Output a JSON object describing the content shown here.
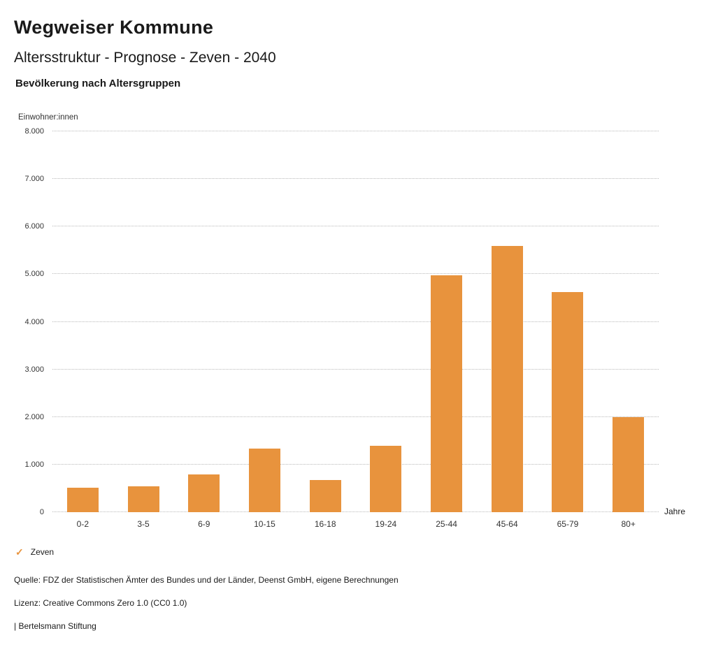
{
  "header": {
    "title": "Wegweiser Kommune",
    "subtitle": "Altersstruktur - Prognose - Zeven - 2040",
    "chart_title": "Bevölkerung nach Altersgruppen"
  },
  "chart_data": {
    "type": "bar",
    "title": "Bevölkerung nach Altersgruppen",
    "y_axis_label": "Einwohner:innen",
    "x_axis_label": "Jahre",
    "categories": [
      "0-2",
      "3-5",
      "6-9",
      "10-15",
      "16-18",
      "19-24",
      "25-44",
      "45-64",
      "65-79",
      "80+"
    ],
    "values": [
      520,
      550,
      790,
      1330,
      680,
      1390,
      4970,
      5600,
      4630,
      2000
    ],
    "ylim": [
      0,
      8000
    ],
    "y_ticks": [
      "0",
      "1.000",
      "2.000",
      "3.000",
      "4.000",
      "5.000",
      "6.000",
      "7.000",
      "8.000"
    ],
    "grid": "dotted horizontal",
    "bar_color": "#E8933D",
    "legend_position": "bottom-left",
    "legend": [
      {
        "label": "Zeven",
        "marker": "check",
        "color": "#E8933D"
      }
    ]
  },
  "footer": {
    "source": "Quelle: FDZ der Statistischen Ämter des Bundes und der Länder, Deenst GmbH, eigene Berechnungen",
    "license": "Lizenz: Creative Commons Zero 1.0 (CC0 1.0)",
    "attribution": "| Bertelsmann Stiftung"
  }
}
